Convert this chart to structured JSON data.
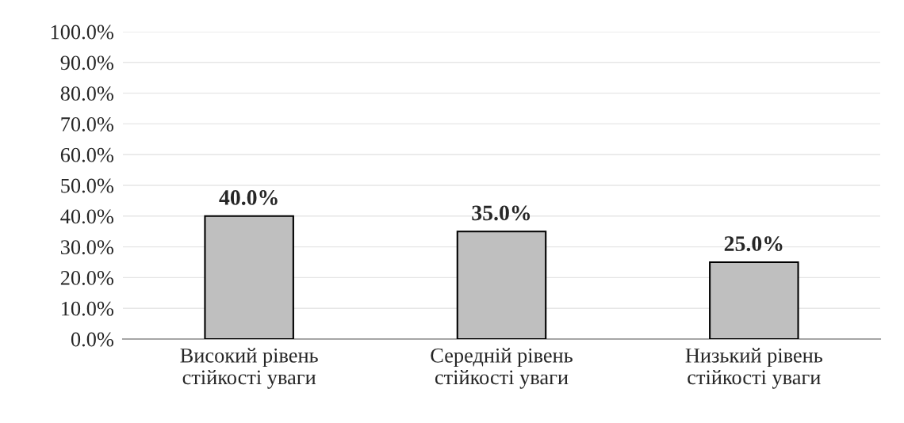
{
  "chart_data": {
    "type": "bar",
    "categories": [
      "Високий рівень\nстійкості уваги",
      "Середній рівень\nстійкості уваги",
      "Низький рівень\nстійкості уваги"
    ],
    "values": [
      40,
      35,
      25
    ],
    "color": "#bfbfbf",
    "value_labels": [
      "40.0%",
      "35.0%",
      "25.0%"
    ],
    "ylim": [
      0,
      100
    ],
    "yticks": [
      {
        "value": 0,
        "label": "0.0%"
      },
      {
        "value": 10,
        "label": "10.0%"
      },
      {
        "value": 20,
        "label": "20.0%"
      },
      {
        "value": 30,
        "label": "30.0%"
      },
      {
        "value": 40,
        "label": "40.0%"
      },
      {
        "value": 50,
        "label": "50.0%"
      },
      {
        "value": 60,
        "label": "60.0%"
      },
      {
        "value": 70,
        "label": "70.0%"
      },
      {
        "value": 80,
        "label": "80.0%"
      },
      {
        "value": 90,
        "label": "90.0%"
      },
      {
        "value": 100,
        "label": "100.0%"
      }
    ],
    "grid": "y"
  }
}
